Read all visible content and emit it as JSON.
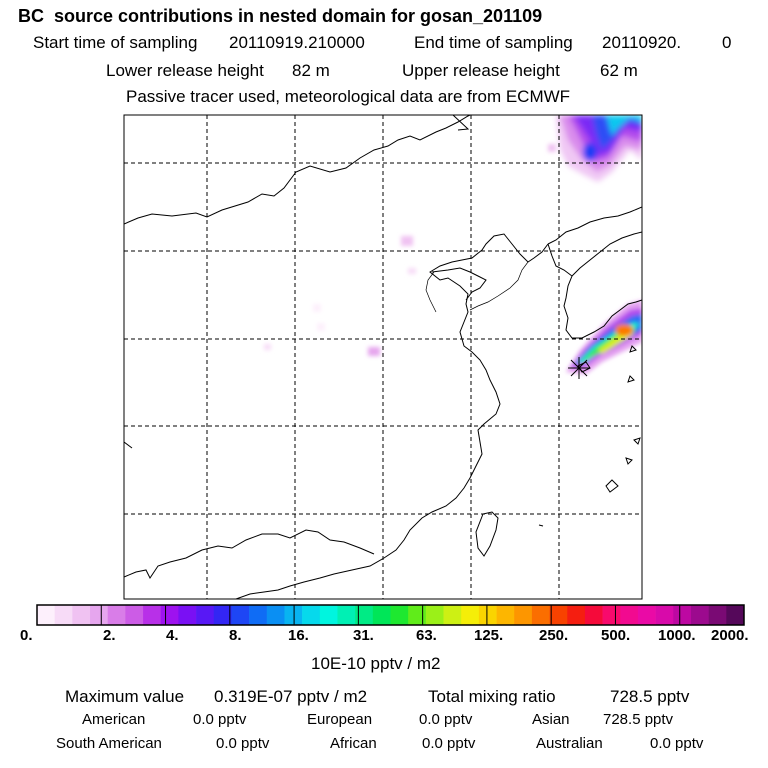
{
  "header": {
    "title": "BC  source contributions in nested domain for gosan_201109",
    "start_label": "Start time of sampling",
    "start_value": "20110919.210000",
    "end_label": "End time of sampling",
    "end_value": "20110920.",
    "end_value2": "0",
    "lower_label": "Lower release height",
    "lower_value": "82 m",
    "upper_label": "Upper release height",
    "upper_value": "62 m",
    "tracer_note": "Passive tracer used, meteorological data are from ECMWF"
  },
  "colorbar": {
    "colors": [
      "#fdf0fc",
      "#f7dbf7",
      "#f0c2f2",
      "#e6a6ee",
      "#d97de8",
      "#cc5ce6",
      "#b830e8",
      "#9e12ef",
      "#7a10f4",
      "#5818f5",
      "#3326f4",
      "#1e46f5",
      "#0f6cf5",
      "#0a8ff3",
      "#08b4f1",
      "#06d9ec",
      "#00f5df",
      "#00f0b4",
      "#00eb85",
      "#00e658",
      "#1ee830",
      "#60ec1a",
      "#9bf018",
      "#cdf014",
      "#f5ee08",
      "#fad400",
      "#fdb600",
      "#fd9600",
      "#fb6e00",
      "#f84200",
      "#f51e10",
      "#f50a3a",
      "#f80a6c",
      "#f20a90",
      "#ea0aa6",
      "#d80aaa",
      "#bd08a2",
      "#9c0a8e",
      "#7a0a74",
      "#55085a"
    ],
    "labels": [
      "0.",
      "2.",
      "4.",
      "8.",
      "16.",
      "31.",
      "63.",
      "125.",
      "250.",
      "500.",
      "1000.",
      "2000."
    ],
    "unit": "10E-10 pptv / m2"
  },
  "footer": {
    "max_label": "Maximum value",
    "max_value": "0.319E-07 pptv / m2",
    "total_label": "Total mixing ratio",
    "total_value": "728.5 pptv",
    "regions": [
      {
        "name": "American",
        "value": "0.0 pptv"
      },
      {
        "name": "European",
        "value": "0.0 pptv"
      },
      {
        "name": "Asian",
        "value": "728.5 pptv"
      },
      {
        "name": "South American",
        "value": "0.0 pptv"
      },
      {
        "name": "African",
        "value": "0.0 pptv"
      },
      {
        "name": "Australian",
        "value": "0.0 pptv"
      }
    ]
  },
  "map": {
    "receptor_marker": "star-marker",
    "colors": {
      "coast": "#000000",
      "grid": "#000000",
      "frame": "#000000"
    }
  }
}
